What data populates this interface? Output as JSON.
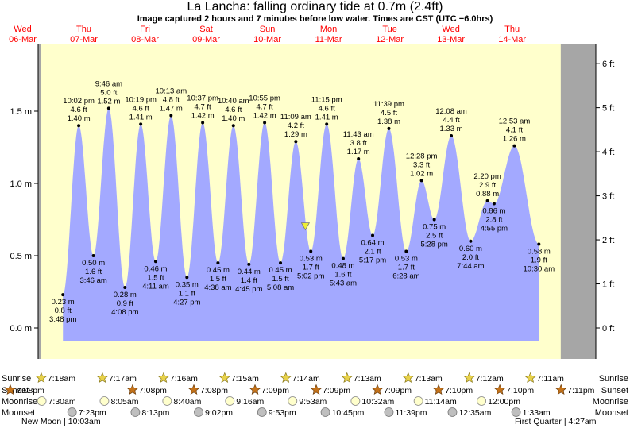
{
  "title": "La Lancha: falling  ordinary tide at 0.7m (2.4ft)",
  "subtitle": "Image captured 2 hours and 7 minutes before low water. Times are CST (UTC −6.0hrs)",
  "colors": {
    "tide_fill": "#a3a9ff",
    "day_band": "#ffffcc",
    "night_band": "#a6a6a6",
    "date_header": "#ff0000",
    "current_marker": "#eeee33"
  },
  "days": [
    {
      "weekday": "Wed",
      "date": "06-Mar"
    },
    {
      "weekday": "Thu",
      "date": "07-Mar"
    },
    {
      "weekday": "Fri",
      "date": "08-Mar"
    },
    {
      "weekday": "Sat",
      "date": "09-Mar"
    },
    {
      "weekday": "Sun",
      "date": "10-Mar"
    },
    {
      "weekday": "Mon",
      "date": "11-Mar"
    },
    {
      "weekday": "Tue",
      "date": "12-Mar"
    },
    {
      "weekday": "Wed",
      "date": "13-Mar"
    },
    {
      "weekday": "Thu",
      "date": "14-Mar"
    }
  ],
  "chart_data": {
    "type": "area",
    "series": [
      {
        "name": "",
        "x_unit": "hours from 06-Mar 00:00"
      }
    ],
    "y_left_unit": "m",
    "y_right_unit": "ft",
    "y_left_ticks": [
      "0.0 m",
      "0.5 m",
      "1.0 m",
      "1.5 m"
    ],
    "y_right_ticks": [
      "0 ft",
      "1 ft",
      "2 ft",
      "3 ft",
      "4 ft",
      "5 ft",
      "6 ft"
    ],
    "ylim_m": [
      -0.12,
      1.74
    ],
    "xlim_hours": [
      0,
      200
    ],
    "tide_extremes": [
      {
        "t": 15.8,
        "h": 0.23,
        "labels": [
          "0.23 m",
          "0.8 ft",
          "3:48 pm"
        ],
        "kind": "low"
      },
      {
        "t": 22.0,
        "h": 1.4,
        "labels": [
          "10:02 pm",
          "4.6 ft",
          "1.40 m"
        ],
        "kind": "high"
      },
      {
        "t": 27.77,
        "h": 0.5,
        "labels": [
          "0.50 m",
          "1.6 ft",
          "3:46 am"
        ],
        "kind": "low"
      },
      {
        "t": 33.77,
        "h": 1.52,
        "labels": [
          "9:46 am",
          "5.0 ft",
          "1.52 m"
        ],
        "kind": "high"
      },
      {
        "t": 40.13,
        "h": 0.28,
        "labels": [
          "0.28 m",
          "0.9 ft",
          "4:08 pm"
        ],
        "kind": "low"
      },
      {
        "t": 46.32,
        "h": 1.41,
        "labels": [
          "10:19 pm",
          "4.6 ft",
          "1.41 m"
        ],
        "kind": "high"
      },
      {
        "t": 52.18,
        "h": 0.46,
        "labels": [
          "0.46 m",
          "1.5 ft",
          "4:11 am"
        ],
        "kind": "low"
      },
      {
        "t": 58.22,
        "h": 1.47,
        "labels": [
          "10:13 am",
          "4.8 ft",
          "1.47 m"
        ],
        "kind": "high"
      },
      {
        "t": 64.45,
        "h": 0.35,
        "labels": [
          "0.35 m",
          "1.1 ft",
          "4:27 pm"
        ],
        "kind": "low"
      },
      {
        "t": 70.62,
        "h": 1.42,
        "labels": [
          "10:37 pm",
          "4.7 ft",
          "1.42 m"
        ],
        "kind": "high"
      },
      {
        "t": 76.63,
        "h": 0.45,
        "labels": [
          "0.45 m",
          "1.5 ft",
          "4:38 am"
        ],
        "kind": "low"
      },
      {
        "t": 82.67,
        "h": 1.4,
        "labels": [
          "10:40 am",
          "4.6 ft",
          "1.40 m"
        ],
        "kind": "high"
      },
      {
        "t": 88.75,
        "h": 0.44,
        "labels": [
          "0.44 m",
          "1.4 ft",
          "4:45 pm"
        ],
        "kind": "low"
      },
      {
        "t": 94.92,
        "h": 1.42,
        "labels": [
          "10:55 pm",
          "4.7 ft",
          "1.42 m"
        ],
        "kind": "high"
      },
      {
        "t": 101.13,
        "h": 0.45,
        "labels": [
          "0.45 m",
          "1.5 ft",
          "5:08 am"
        ],
        "kind": "low"
      },
      {
        "t": 107.15,
        "h": 1.29,
        "labels": [
          "11:09 am",
          "4.2 ft",
          "1.29 m"
        ],
        "kind": "high"
      },
      {
        "t": 113.03,
        "h": 0.53,
        "labels": [
          "0.53 m",
          "1.7 ft",
          "5:02 pm"
        ],
        "kind": "low"
      },
      {
        "t": 119.25,
        "h": 1.41,
        "labels": [
          "11:15 pm",
          "4.6 ft",
          "1.41 m"
        ],
        "kind": "high"
      },
      {
        "t": 125.72,
        "h": 0.48,
        "labels": [
          "0.48 m",
          "1.6 ft",
          "5:43 am"
        ],
        "kind": "low"
      },
      {
        "t": 131.72,
        "h": 1.17,
        "labels": [
          "11:43 am",
          "3.8 ft",
          "1.17 m"
        ],
        "kind": "high"
      },
      {
        "t": 137.28,
        "h": 0.64,
        "labels": [
          "0.64 m",
          "2.1 ft",
          "5:17 pm"
        ],
        "kind": "low"
      },
      {
        "t": 143.65,
        "h": 1.38,
        "labels": [
          "11:39 pm",
          "4.5 ft",
          "1.38 m"
        ],
        "kind": "high"
      },
      {
        "t": 150.47,
        "h": 0.53,
        "labels": [
          "0.53 m",
          "1.7 ft",
          "6:28 am"
        ],
        "kind": "low"
      },
      {
        "t": 156.47,
        "h": 1.02,
        "labels": [
          "12:28 pm",
          "3.3 ft",
          "1.02 m"
        ],
        "kind": "high"
      },
      {
        "t": 161.47,
        "h": 0.75,
        "labels": [
          "0.75 m",
          "2.5 ft",
          "5:28 pm"
        ],
        "kind": "low"
      },
      {
        "t": 168.13,
        "h": 1.33,
        "labels": [
          "12:08 am",
          "4.4 ft",
          "1.33 m"
        ],
        "kind": "high"
      },
      {
        "t": 175.73,
        "h": 0.6,
        "labels": [
          "0.60 m",
          "2.0 ft",
          "7:44 am"
        ],
        "kind": "low"
      },
      {
        "t": 182.33,
        "h": 0.88,
        "labels": [
          "2:20 pm",
          "2.9 ft",
          "0.88 m"
        ],
        "kind": "high"
      },
      {
        "t": 184.92,
        "h": 0.86,
        "labels": [
          "0.86 m",
          "2.8 ft",
          "4:55 pm"
        ],
        "kind": "low"
      },
      {
        "t": 192.88,
        "h": 1.26,
        "labels": [
          "12:53 am",
          "4.1 ft",
          "1.26 m"
        ],
        "kind": "high"
      },
      {
        "t": 202.5,
        "h": 0.58,
        "labels": [
          "0.58 m",
          "1.9 ft",
          "10:30 am"
        ],
        "kind": "low"
      }
    ],
    "current": {
      "t": 110.9,
      "h": 0.7
    }
  },
  "astro": {
    "row_labels": {
      "sunrise": "Sunrise",
      "sunset": "Sunset",
      "moonrise": "Moonrise",
      "moonset": "Moonset"
    },
    "sunrise": [
      {
        "t": 7.3,
        "label": "7:18am"
      },
      {
        "t": 31.28,
        "label": "7:17am"
      },
      {
        "t": 55.27,
        "label": "7:16am"
      },
      {
        "t": 79.25,
        "label": "7:15am"
      },
      {
        "t": 103.23,
        "label": "7:14am"
      },
      {
        "t": 127.22,
        "label": "7:13am"
      },
      {
        "t": 151.22,
        "label": "7:13am"
      },
      {
        "t": 175.2,
        "label": "7:12am"
      },
      {
        "t": 199.18,
        "label": "7:11am"
      }
    ],
    "sunset": [
      {
        "t": -4.87,
        "label": "7:08pm"
      },
      {
        "t": 43.13,
        "label": "7:08pm"
      },
      {
        "t": 67.15,
        "label": "7:08pm"
      },
      {
        "t": 91.15,
        "label": "7:09pm"
      },
      {
        "t": 115.15,
        "label": "7:09pm"
      },
      {
        "t": 139.15,
        "label": "7:09pm"
      },
      {
        "t": 163.17,
        "label": "7:10pm"
      },
      {
        "t": 187.17,
        "label": "7:10pm"
      },
      {
        "t": 211.18,
        "label": "7:11pm"
      }
    ],
    "moonrise": [
      {
        "t": 7.5,
        "label": "7:30am"
      },
      {
        "t": 32.08,
        "label": "8:05am"
      },
      {
        "t": 56.67,
        "label": "8:40am"
      },
      {
        "t": 81.27,
        "label": "9:16am"
      },
      {
        "t": 105.88,
        "label": "9:53am"
      },
      {
        "t": 130.53,
        "label": "10:32am"
      },
      {
        "t": 155.23,
        "label": "11:14am"
      },
      {
        "t": 180.0,
        "label": "12:00pm"
      }
    ],
    "moonset": [
      {
        "t": 19.38,
        "label": "7:23pm"
      },
      {
        "t": 44.22,
        "label": "8:13pm"
      },
      {
        "t": 69.03,
        "label": "9:02pm"
      },
      {
        "t": 93.88,
        "label": "9:53pm"
      },
      {
        "t": 118.75,
        "label": "10:45pm"
      },
      {
        "t": 143.65,
        "label": "11:39pm"
      },
      {
        "t": 168.58,
        "label": "12:35am"
      },
      {
        "t": 193.55,
        "label": "1:33am"
      }
    ],
    "moon_phases": [
      {
        "text": "New Moon | 10:03am"
      },
      {
        "text": "First Quarter | 4:27am"
      }
    ]
  }
}
